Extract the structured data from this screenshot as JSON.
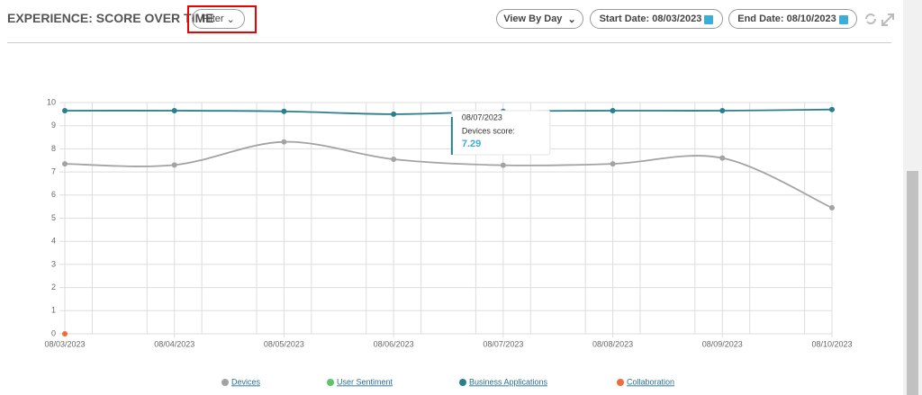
{
  "header": {
    "title": "EXPERIENCE: SCORE OVER TIME",
    "filter": "Filter",
    "view": "View By Day",
    "start_date": "Start Date: 08/03/2023",
    "end_date": "End Date: 08/10/2023"
  },
  "chart_data": {
    "type": "line",
    "categories": [
      "08/03/2023",
      "08/04/2023",
      "08/05/2023",
      "08/06/2023",
      "08/07/2023",
      "08/08/2023",
      "08/09/2023",
      "08/10/2023"
    ],
    "series": [
      {
        "name": "Devices",
        "color": "#a3a3a3",
        "values": [
          7.35,
          7.3,
          8.3,
          7.55,
          7.29,
          7.35,
          7.6,
          5.45
        ]
      },
      {
        "name": "User Sentiment",
        "color": "#5cc46a",
        "values": [
          null,
          null,
          null,
          null,
          null,
          null,
          null,
          null
        ]
      },
      {
        "name": "Business Applications",
        "color": "#2a7f8f",
        "values": [
          9.65,
          9.65,
          9.62,
          9.5,
          9.62,
          9.65,
          9.65,
          9.7
        ]
      },
      {
        "name": "Collaboration",
        "color": "#f26b3a",
        "values": [
          0,
          null,
          null,
          null,
          null,
          null,
          null,
          null
        ]
      }
    ],
    "ylim": [
      0,
      10
    ],
    "yticks": [
      0,
      1,
      2,
      3,
      4,
      5,
      6,
      7,
      8,
      9,
      10
    ],
    "grid": true,
    "tooltip": {
      "date": "08/07/2023",
      "label": "Devices score:",
      "value": 7.29
    }
  }
}
